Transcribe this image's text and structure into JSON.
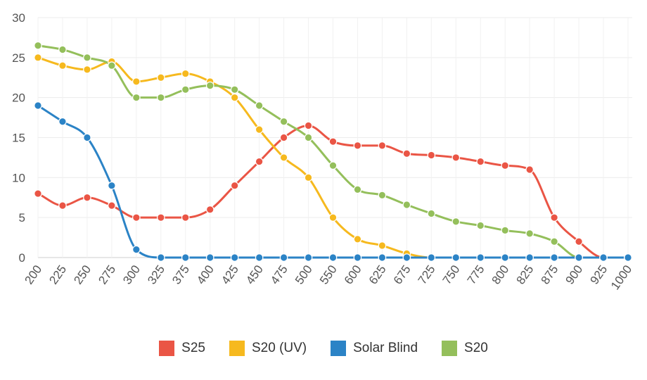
{
  "chart_data": {
    "type": "line",
    "title": "",
    "xlabel": "",
    "ylabel": "",
    "ylim": [
      0,
      30
    ],
    "y_ticks": [
      "0",
      "5",
      "10",
      "15",
      "20",
      "25",
      "30"
    ],
    "categories": [
      "200",
      "225",
      "250",
      "275",
      "300",
      "325",
      "375",
      "400",
      "425",
      "450",
      "475",
      "500",
      "550",
      "600",
      "625",
      "675",
      "725",
      "750",
      "775",
      "800",
      "825",
      "875",
      "900",
      "925",
      "1000"
    ],
    "grid": true,
    "legend_position": "bottom",
    "series": [
      {
        "name": "S25",
        "color": "#ea5545",
        "values": [
          8,
          6.5,
          7.5,
          6.5,
          5,
          5,
          5,
          6,
          9,
          12,
          15,
          16.5,
          14.5,
          14,
          14,
          13,
          12.8,
          12.5,
          12,
          11.5,
          11,
          5,
          2,
          0,
          0
        ]
      },
      {
        "name": "S20 (UV)",
        "color": "#f6b91e",
        "values": [
          25,
          24,
          23.5,
          24.5,
          22,
          22.5,
          23,
          22,
          20,
          16,
          12.5,
          10,
          5,
          2.3,
          1.5,
          0.5,
          0,
          0,
          0,
          0,
          0,
          0,
          0,
          0,
          0
        ]
      },
      {
        "name": "Solar Blind",
        "color": "#2b83c6",
        "values": [
          19,
          17,
          15,
          9,
          1,
          0,
          0,
          0,
          0,
          0,
          0,
          0,
          0,
          0,
          0,
          0,
          0,
          0,
          0,
          0,
          0,
          0,
          0,
          0,
          0
        ]
      },
      {
        "name": "S20",
        "color": "#94bf5b",
        "values": [
          26.5,
          26,
          25,
          24,
          20,
          20,
          21,
          21.5,
          21,
          19,
          17,
          15,
          11.5,
          8.5,
          7.8,
          6.6,
          5.5,
          4.5,
          4,
          3.4,
          3,
          2,
          0,
          0,
          0
        ]
      }
    ]
  }
}
